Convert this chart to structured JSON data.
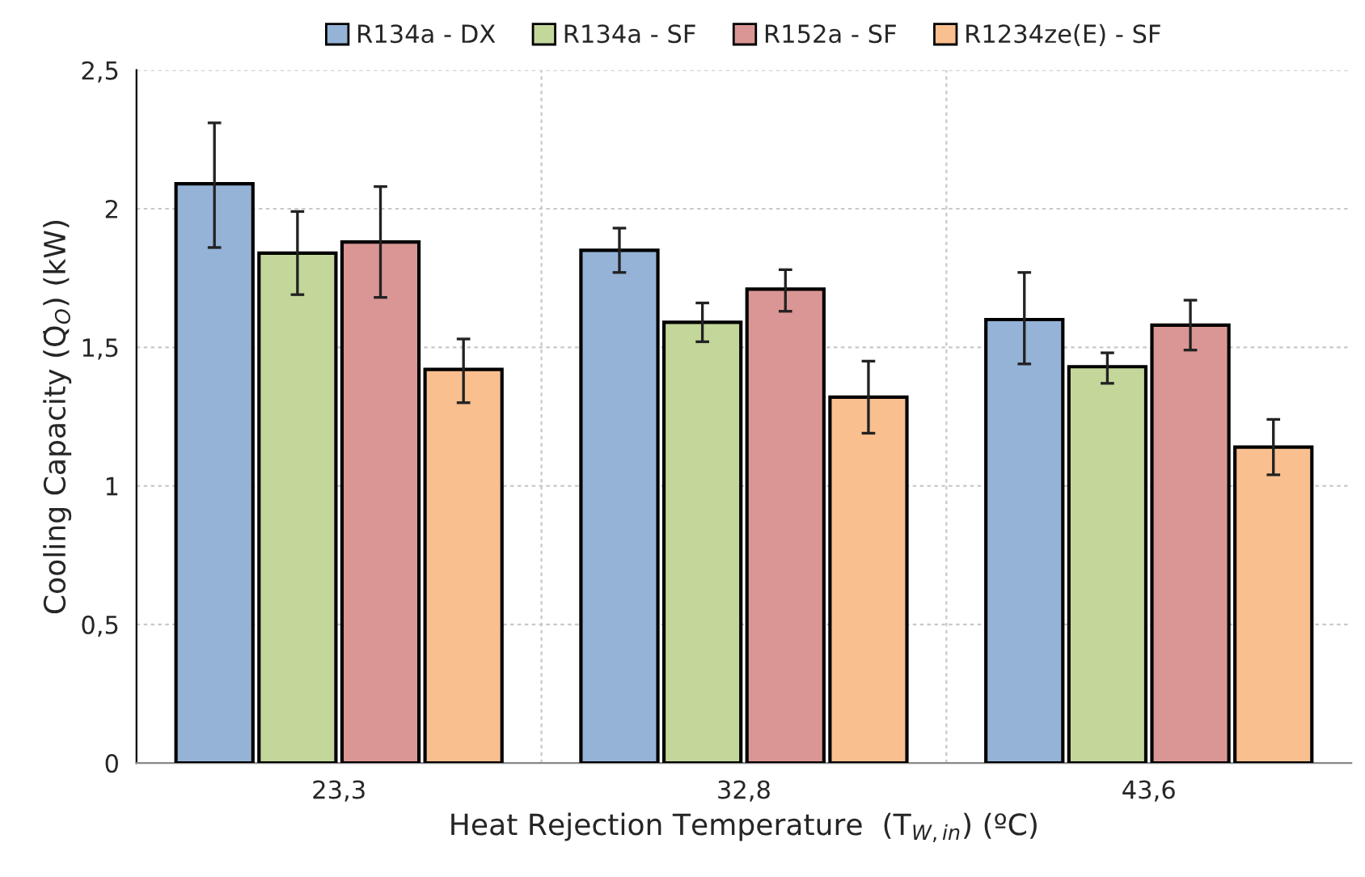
{
  "chart_data": {
    "type": "bar",
    "xlabel": "Heat Rejection Temperature  (T$_{W,in}$) (ºC)",
    "ylabel": "Cooling Capacity (Q̇$_{O}$) (kW)",
    "categories": [
      "23,3",
      "32,8",
      "43,6"
    ],
    "series": [
      {
        "name": "R134a - DX",
        "color": "#95b3d7",
        "values": [
          2.09,
          1.85,
          1.6
        ],
        "errors": [
          [
            1.86,
            2.31
          ],
          [
            1.77,
            1.93
          ],
          [
            1.44,
            1.77
          ]
        ]
      },
      {
        "name": "R134a - SF",
        "color": "#c4d79b",
        "values": [
          1.84,
          1.59,
          1.43
        ],
        "errors": [
          [
            1.69,
            1.99
          ],
          [
            1.52,
            1.66
          ],
          [
            1.37,
            1.48
          ]
        ]
      },
      {
        "name": "R152a - SF",
        "color": "#da9694",
        "values": [
          1.88,
          1.71,
          1.58
        ],
        "errors": [
          [
            1.68,
            2.08
          ],
          [
            1.63,
            1.78
          ],
          [
            1.49,
            1.67
          ]
        ]
      },
      {
        "name": "R1234ze(E) - SF",
        "color": "#fabf8f",
        "values": [
          1.42,
          1.32,
          1.14
        ],
        "errors": [
          [
            1.3,
            1.53
          ],
          [
            1.19,
            1.45
          ],
          [
            1.04,
            1.24
          ]
        ]
      }
    ],
    "ylim": [
      0,
      2.5
    ],
    "yticks": [
      0,
      {
        "value": 0.5,
        "label": "0,5"
      },
      1,
      {
        "value": 1.5,
        "label": "1,5"
      },
      2,
      {
        "value": 2.5,
        "label": "2,5"
      }
    ],
    "grid": true,
    "legend": "top"
  }
}
